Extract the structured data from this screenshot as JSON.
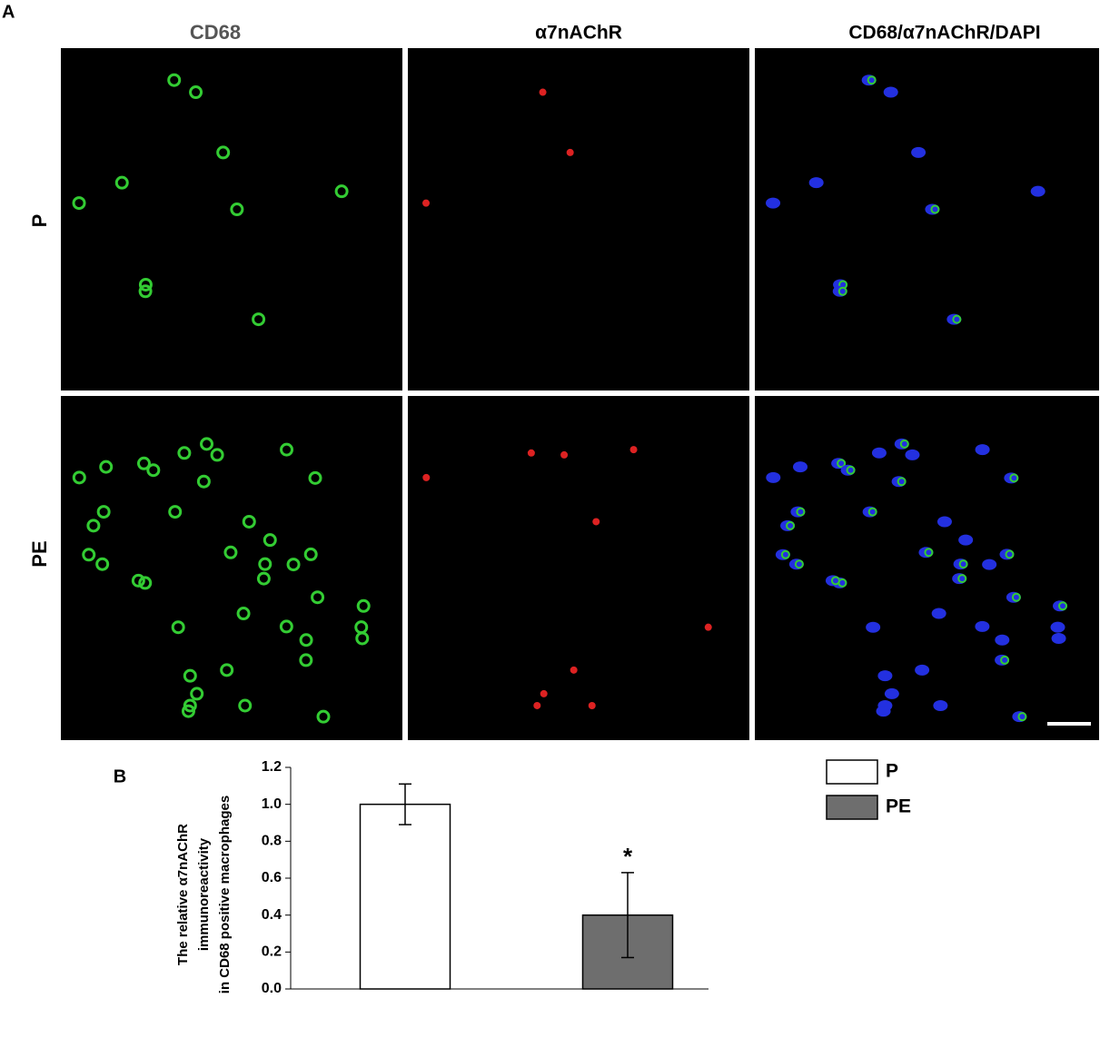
{
  "figure": {
    "panel_a": {
      "label": "A",
      "columns": [
        "CD68",
        "α7nAChR",
        "CD68/α7nAChR/DAPI"
      ],
      "rows": [
        "P",
        "PE"
      ]
    },
    "panel_b": {
      "label": "B"
    }
  },
  "chart_data": {
    "type": "bar",
    "ylabel": [
      "The relative α7nAChR",
      "immunoreactivity",
      "in CD68 positive macrophages"
    ],
    "series": [
      {
        "name": "P",
        "color": "#ffffff",
        "values": [
          1.0
        ],
        "errors": [
          0.11
        ]
      },
      {
        "name": "PE",
        "color": "#6e6e6e",
        "values": [
          0.4
        ],
        "errors": [
          0.23
        ],
        "annotation": "*"
      }
    ],
    "ylim": [
      0,
      1.2
    ],
    "yticks": [
      {
        "value": 0,
        "label": "0.0"
      },
      {
        "value": 0.2,
        "label": "0.2"
      },
      {
        "value": 0.4,
        "label": "0.4"
      },
      {
        "value": 0.6,
        "label": "0.6"
      },
      {
        "value": 0.8,
        "label": "0.8"
      },
      {
        "value": 1,
        "label": "1.0"
      },
      {
        "value": 1.2,
        "label": "1.2"
      }
    ],
    "legend": "top-right"
  }
}
